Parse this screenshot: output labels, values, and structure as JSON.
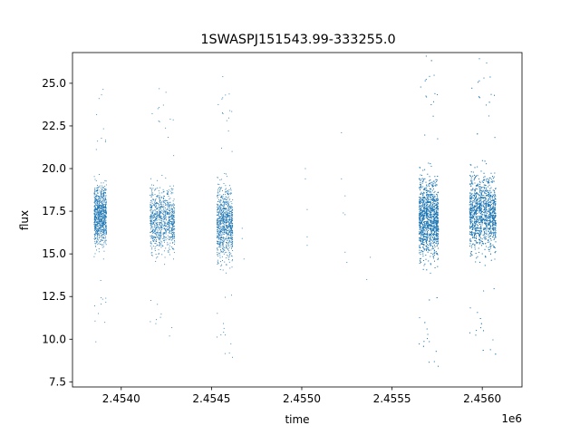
{
  "chart_data": {
    "type": "scatter",
    "title": "1SWASPJ151543.99-333255.0",
    "xlabel": "time",
    "ylabel": "flux",
    "x_offset_label": "1e6",
    "xlim": [
      2.45373,
      2.45622
    ],
    "ylim": [
      7.2,
      26.8
    ],
    "x_ticks": [
      2.454,
      2.4545,
      2.455,
      2.4555,
      2.456
    ],
    "x_tick_labels": [
      "2.4540",
      "2.4545",
      "2.4550",
      "2.4555",
      "2.4560"
    ],
    "y_ticks": [
      7.5,
      10.0,
      12.5,
      15.0,
      17.5,
      20.0,
      22.5,
      25.0
    ],
    "y_tick_labels": [
      "7.5",
      "10.0",
      "12.5",
      "15.0",
      "17.5",
      "20.0",
      "22.5",
      "25.0"
    ],
    "grid": false,
    "marker_color": "#1f77b4",
    "series": [
      {
        "values_note": "",
        "clusters": [
          {
            "x_range": [
              2.45385,
              2.45392
            ],
            "y_center": 17.3,
            "y_spread": 1.6,
            "density": "medium"
          },
          {
            "x_range": [
              2.45416,
              2.4543
            ],
            "y_center": 17.0,
            "y_spread": 1.7,
            "density": "medium"
          },
          {
            "x_range": [
              2.45453,
              2.45462
            ],
            "y_center": 16.8,
            "y_spread": 1.9,
            "density": "medium"
          },
          {
            "x_range": [
              2.45565,
              2.45576
            ],
            "y_center": 17.1,
            "y_spread": 2.1,
            "density": "high"
          },
          {
            "x_range": [
              2.45593,
              2.45608
            ],
            "y_center": 17.4,
            "y_spread": 2.0,
            "density": "high"
          }
        ],
        "sparse_points": [
          [
            2.45467,
            16.5
          ],
          [
            2.45467,
            15.9
          ],
          [
            2.45468,
            14.7
          ],
          [
            2.45502,
            20.0
          ],
          [
            2.45502,
            19.4
          ],
          [
            2.45503,
            16.0
          ],
          [
            2.45503,
            15.5
          ],
          [
            2.45503,
            17.6
          ],
          [
            2.45522,
            22.1
          ],
          [
            2.45522,
            19.4
          ],
          [
            2.45523,
            17.4
          ],
          [
            2.45524,
            18.4
          ],
          [
            2.45524,
            17.3
          ],
          [
            2.45524,
            15.1
          ],
          [
            2.45525,
            14.5
          ],
          [
            2.45536,
            13.5
          ],
          [
            2.45538,
            14.8
          ]
        ]
      }
    ]
  }
}
